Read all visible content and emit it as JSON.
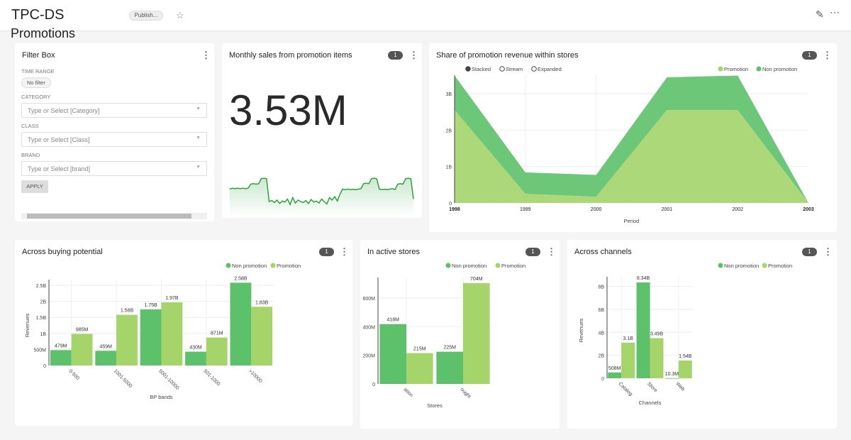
{
  "header": {
    "title_line1": "TPC-DS",
    "title_line2": "Promotions",
    "status_badge": "Publish...",
    "star_icon": "star-icon",
    "edit_icon": "pencil-icon",
    "more_icon": "more-horizontal-icon"
  },
  "colors": {
    "non_promotion": "#5cc16a",
    "promotion": "#a4d46a",
    "sparkline": "#2ea33a"
  },
  "filter_box": {
    "title": "Filter Box",
    "time_range_label": "TIME RANGE",
    "time_range_value": "No filter",
    "fields": [
      {
        "label": "CATEGORY",
        "placeholder": "Type or Select [Category]"
      },
      {
        "label": "CLASS",
        "placeholder": "Type or Select [Class]"
      },
      {
        "label": "BRAND",
        "placeholder": "Type or Select [brand]"
      }
    ],
    "apply_label": "APPLY"
  },
  "filter_badge": "1",
  "big_number": {
    "title": "Monthly sales from promotion items",
    "value": "3.53M"
  },
  "chart_data": [
    {
      "type": "line",
      "name": "sparkline",
      "values": [
        55,
        57,
        56,
        57,
        56,
        57,
        56,
        57,
        65,
        66,
        65,
        66,
        76,
        77,
        76,
        30,
        32,
        28,
        33,
        26,
        31,
        29,
        35,
        24,
        38,
        27,
        33,
        30,
        28,
        32,
        26,
        34,
        29,
        31,
        27,
        35,
        30,
        25,
        38,
        33,
        40,
        31,
        45,
        55,
        54,
        55,
        54,
        55,
        54,
        55,
        56,
        66,
        67,
        66,
        76,
        77,
        76,
        55,
        54,
        55,
        54,
        55,
        56,
        54,
        65,
        66,
        65,
        76,
        77,
        76,
        35
      ]
    },
    {
      "type": "area",
      "title": "Share of promotion revenue within stores",
      "controls": [
        "Stacked",
        "Stream",
        "Expanded"
      ],
      "selected_control": "Stacked",
      "xlabel": "Period",
      "x": [
        "1998",
        "1999",
        "2000",
        "2001",
        "2002",
        "2003"
      ],
      "yticks": [
        "0",
        "1B",
        "2B",
        "3B"
      ],
      "ylim": [
        0,
        3500000000
      ],
      "series": [
        {
          "name": "Promotion",
          "values": [
            2550000000,
            250000000,
            170000000,
            2550000000,
            2550000000,
            0
          ]
        },
        {
          "name": "Non promotion",
          "values": [
            950000000,
            590000000,
            600000000,
            900000000,
            950000000,
            0
          ]
        }
      ]
    },
    {
      "type": "bar",
      "title": "Across buying potential",
      "xlabel": "BP bands",
      "ylabel": "Revenues",
      "categories": [
        "0-500",
        "1001-5000",
        "5001-10000",
        "501-1000",
        ">10000"
      ],
      "yticks": [
        [
          "0",
          0
        ],
        [
          "500M",
          500000000
        ],
        [
          "1B",
          1000000000
        ],
        [
          "1.5B",
          1500000000
        ],
        [
          "2B",
          2000000000
        ],
        [
          "2.5B",
          2500000000
        ]
      ],
      "ylim": [
        0,
        2500000000
      ],
      "series": [
        {
          "name": "Non promotion",
          "values": [
            479000000,
            459000000,
            1750000000,
            430000000,
            2580000000
          ],
          "labels": [
            "479M",
            "459M",
            "1.75B",
            "430M",
            "2.58B"
          ]
        },
        {
          "name": "Promotion",
          "values": [
            985000000,
            1580000000,
            1970000000,
            871000000,
            1830000000
          ],
          "labels": [
            "985M",
            "1.58B",
            "1.97B",
            "871M",
            "1.83B"
          ]
        }
      ]
    },
    {
      "type": "bar",
      "title": "In active stores",
      "xlabel": "Stores",
      "ylabel": "",
      "categories": [
        "ation",
        "ought"
      ],
      "yticks": [
        [
          "0",
          0
        ],
        [
          "200M",
          200000000
        ],
        [
          "400M",
          400000000
        ],
        [
          "600M",
          600000000
        ]
      ],
      "ylim": [
        0,
        704000000
      ],
      "series": [
        {
          "name": "Non promotion",
          "values": [
            418000000,
            225000000
          ],
          "labels": [
            "418M",
            "225M"
          ]
        },
        {
          "name": "Promotion",
          "values": [
            215000000,
            704000000
          ],
          "labels": [
            "215M",
            "704M"
          ]
        }
      ]
    },
    {
      "type": "bar",
      "title": "Across channels",
      "xlabel": "Channels",
      "ylabel": "Revenues",
      "categories": [
        "Catalog",
        "Store",
        "Web"
      ],
      "yticks": [
        [
          "0",
          0
        ],
        [
          "2B",
          2000000000
        ],
        [
          "4B",
          4000000000
        ],
        [
          "6B",
          6000000000
        ],
        [
          "8B",
          8000000000
        ]
      ],
      "ylim": [
        0,
        8340000000
      ],
      "series": [
        {
          "name": "Non promotion",
          "values": [
            508000000,
            8340000000,
            10300000
          ],
          "labels": [
            "508M",
            "8.34B",
            "10.3M"
          ]
        },
        {
          "name": "Promotion",
          "values": [
            3100000000,
            3490000000,
            1540000000
          ],
          "labels": [
            "3.1B",
            "3.49B",
            "1.54B"
          ]
        }
      ]
    }
  ]
}
